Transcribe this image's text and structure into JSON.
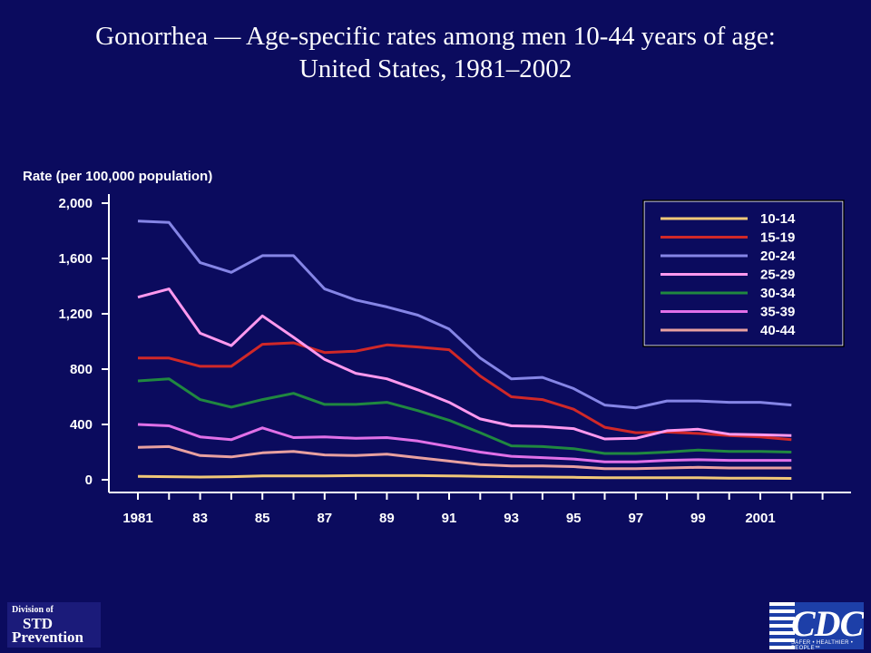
{
  "title_line1": "Gonorrhea — Age-specific rates among men 10-44 years of age:",
  "title_line2": "United States, 1981–2002",
  "logos": {
    "std_line1": "Division of",
    "std_line2": "STD",
    "std_line3": "Prevention",
    "cdc_text": "CDC",
    "cdc_tagline": "SAFER • HEALTHIER • PEOPLE™"
  },
  "chart_data": {
    "type": "line",
    "title": "Gonorrhea — Age-specific rates among men 10-44 years of age: United States, 1981–2002",
    "ylabel": "Rate (per 100,000 population)",
    "xlabel": "",
    "x": [
      1981,
      1982,
      1983,
      1984,
      1985,
      1986,
      1987,
      1988,
      1989,
      1990,
      1991,
      1992,
      1993,
      1994,
      1995,
      1996,
      1997,
      1998,
      1999,
      2000,
      2001,
      2002
    ],
    "xlim": [
      1981,
      2003
    ],
    "ylim": [
      0,
      2000
    ],
    "yticks": [
      0,
      400,
      800,
      1200,
      1600,
      2000
    ],
    "ytick_labels": [
      "0",
      "400",
      "800",
      "1,200",
      "1,600",
      "2,000"
    ],
    "xticks": [
      1981,
      1983,
      1985,
      1987,
      1989,
      1991,
      1993,
      1995,
      1997,
      1999,
      2001
    ],
    "xtick_labels": [
      "1981",
      "83",
      "85",
      "87",
      "89",
      "91",
      "93",
      "95",
      "97",
      "99",
      "2001"
    ],
    "grid": false,
    "legend_position": "top-right",
    "series": [
      {
        "name": "10-14",
        "color": "#f0c878",
        "values": [
          25,
          22,
          20,
          22,
          28,
          28,
          28,
          30,
          30,
          30,
          28,
          25,
          22,
          20,
          18,
          15,
          15,
          15,
          15,
          12,
          12,
          10
        ]
      },
      {
        "name": "15-19",
        "color": "#d02828",
        "values": [
          880,
          880,
          820,
          820,
          980,
          990,
          920,
          930,
          975,
          960,
          940,
          750,
          600,
          580,
          510,
          380,
          340,
          345,
          335,
          320,
          310,
          290
        ]
      },
      {
        "name": "20-24",
        "color": "#8585e6",
        "values": [
          1870,
          1860,
          1570,
          1500,
          1620,
          1620,
          1380,
          1300,
          1250,
          1190,
          1090,
          880,
          730,
          740,
          660,
          540,
          520,
          570,
          570,
          560,
          560,
          540
        ]
      },
      {
        "name": "25-29",
        "color": "#ff99ee",
        "values": [
          1320,
          1380,
          1060,
          970,
          1185,
          1030,
          870,
          770,
          730,
          650,
          560,
          440,
          390,
          385,
          370,
          295,
          300,
          355,
          365,
          330,
          325,
          320
        ]
      },
      {
        "name": "30-34",
        "color": "#208840",
        "values": [
          715,
          730,
          580,
          525,
          580,
          625,
          545,
          545,
          560,
          500,
          430,
          340,
          245,
          240,
          225,
          190,
          190,
          200,
          215,
          205,
          205,
          200
        ]
      },
      {
        "name": "35-39",
        "color": "#e070e8",
        "values": [
          400,
          390,
          310,
          290,
          375,
          305,
          310,
          300,
          305,
          280,
          240,
          200,
          170,
          160,
          150,
          130,
          130,
          140,
          145,
          140,
          140,
          140
        ]
      },
      {
        "name": "40-44",
        "color": "#e8a0a0",
        "values": [
          235,
          240,
          175,
          165,
          195,
          205,
          180,
          175,
          185,
          160,
          135,
          110,
          100,
          100,
          95,
          80,
          80,
          85,
          90,
          85,
          85,
          85
        ]
      }
    ]
  }
}
